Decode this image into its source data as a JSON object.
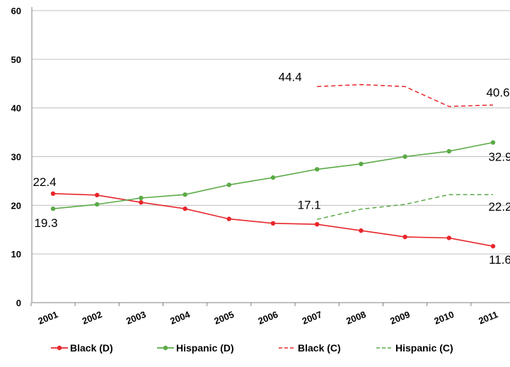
{
  "chart_data": {
    "type": "line",
    "title": "",
    "xlabel": "",
    "ylabel": "",
    "ylim": [
      0,
      60
    ],
    "yticks": [
      "0",
      "10",
      "20",
      "30",
      "40",
      "50",
      "60"
    ],
    "categories": [
      "2001",
      "2002",
      "2003",
      "2004",
      "2005",
      "2006",
      "2007",
      "2008",
      "2009",
      "2010",
      "2011"
    ],
    "grid": "horizontal",
    "legend_position": "bottom",
    "series": [
      {
        "name": "Black (D)",
        "color": "#e8262b",
        "style": "solid-markers",
        "values": [
          22.4,
          22.1,
          20.6,
          19.3,
          17.2,
          16.3,
          16.1,
          14.8,
          13.5,
          13.3,
          11.6
        ]
      },
      {
        "name": "Hispanic (D)",
        "color": "#5aaa46",
        "style": "solid-markers",
        "values": [
          19.3,
          20.2,
          21.5,
          22.2,
          24.2,
          25.7,
          27.4,
          28.5,
          30.0,
          31.1,
          32.9
        ]
      },
      {
        "name": "Black (C)",
        "color": "#e8262b",
        "style": "dashed",
        "values": [
          null,
          null,
          null,
          null,
          null,
          null,
          44.4,
          44.8,
          44.4,
          40.3,
          40.6
        ]
      },
      {
        "name": "Hispanic (C)",
        "color": "#5aaa46",
        "style": "dashed",
        "values": [
          null,
          null,
          null,
          null,
          null,
          null,
          17.1,
          19.2,
          20.2,
          22.2,
          22.2
        ]
      }
    ],
    "data_labels": [
      {
        "series": 0,
        "index": 0,
        "text": "22.4"
      },
      {
        "series": 0,
        "index": 10,
        "text": "11.6"
      },
      {
        "series": 1,
        "index": 0,
        "text": "19.3"
      },
      {
        "series": 1,
        "index": 10,
        "text": "32.9"
      },
      {
        "series": 2,
        "index": 6,
        "text": "44.4"
      },
      {
        "series": 2,
        "index": 10,
        "text": "40.6"
      },
      {
        "series": 3,
        "index": 6,
        "text": "17.1"
      },
      {
        "series": 3,
        "index": 10,
        "text": "22.2"
      }
    ]
  }
}
